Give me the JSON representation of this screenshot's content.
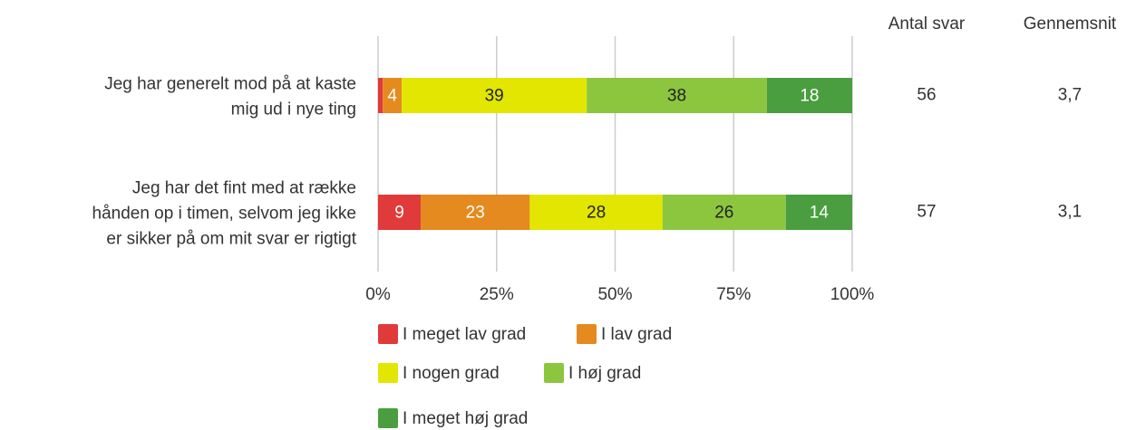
{
  "chart_data": {
    "type": "stacked_bar_horizontal",
    "categories": [
      "Jeg har generelt mod på at kaste\nmig ud i nye ting",
      "Jeg har det fint med at række\nhånden op i timen, selvom jeg ikke\ner sikker på om mit svar er rigtigt"
    ],
    "series": [
      {
        "name": "I meget lav grad",
        "color": "#e03a3a",
        "values": [
          1,
          9
        ],
        "value_labels": [
          null,
          "9"
        ]
      },
      {
        "name": "I lav grad",
        "color": "#e58a1f",
        "values": [
          4,
          23
        ]
      },
      {
        "name": "I nogen grad",
        "color": "#e2e600",
        "values": [
          39,
          28
        ]
      },
      {
        "name": "I høj grad",
        "color": "#8cc63f",
        "values": [
          38,
          26
        ]
      },
      {
        "name": "I meget høj grad",
        "color": "#4a9e3f",
        "values": [
          18,
          14
        ]
      }
    ],
    "xlim": [
      0,
      100
    ],
    "xticks": [
      {
        "value": 0,
        "label": "0%"
      },
      {
        "value": 25,
        "label": "25%"
      },
      {
        "value": 50,
        "label": "50%"
      },
      {
        "value": 75,
        "label": "75%"
      },
      {
        "value": 100,
        "label": "100%"
      }
    ],
    "grid": true,
    "columns": [
      {
        "name": "Antal svar",
        "values": [
          56,
          57
        ]
      },
      {
        "name": "Gennemsnit",
        "values": [
          3.7,
          3.1
        ],
        "value_labels": [
          "3,7",
          "3,1"
        ]
      }
    ]
  }
}
